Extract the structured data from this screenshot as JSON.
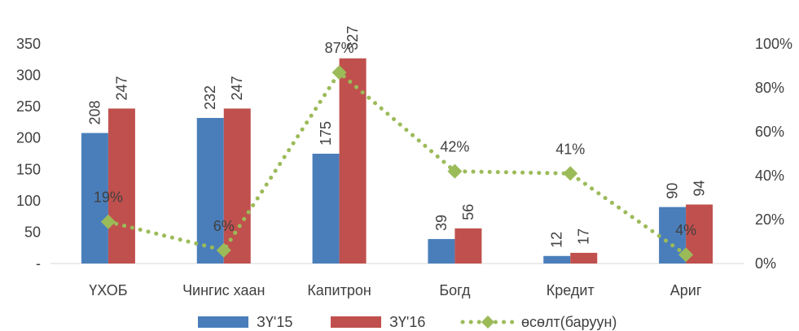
{
  "chart_data": {
    "type": "bar",
    "categories": [
      "ҮХОБ",
      "Чингис хаан",
      "Капитрон",
      "Богд",
      "Кредит",
      "Ариг"
    ],
    "series": [
      {
        "name": "ЗҮ'15",
        "type": "bar",
        "axis": "left",
        "color": "#4a7ebb",
        "values": [
          208,
          232,
          175,
          39,
          12,
          90
        ],
        "labels": [
          "208",
          "232",
          "175",
          "39",
          "12",
          "90"
        ]
      },
      {
        "name": "ЗҮ'16",
        "type": "bar",
        "axis": "left",
        "color": "#c0504d",
        "values": [
          247,
          247,
          327,
          56,
          17,
          94
        ],
        "labels": [
          "247",
          "247",
          "327",
          "56",
          "17",
          "94"
        ]
      },
      {
        "name": "өсөлт(баруун)",
        "type": "line",
        "axis": "right",
        "color": "#9bbb59",
        "values": [
          0.19,
          0.06,
          0.87,
          0.42,
          0.41,
          0.04
        ],
        "labels": [
          "19%",
          "6%",
          "87%",
          "42%",
          "41%",
          "4%"
        ]
      }
    ],
    "y_left": {
      "min": 0,
      "max": 350,
      "step": 50,
      "tick_labels": [
        "-",
        "50",
        "100",
        "150",
        "200",
        "250",
        "300",
        "350"
      ]
    },
    "y_right": {
      "min": 0,
      "max": 1,
      "step": 0.2,
      "tick_labels": [
        "0%",
        "20%",
        "40%",
        "60%",
        "80%",
        "100%"
      ]
    },
    "title": "",
    "xlabel": "",
    "ylabel": "",
    "grid": false,
    "legend_position": "bottom"
  }
}
